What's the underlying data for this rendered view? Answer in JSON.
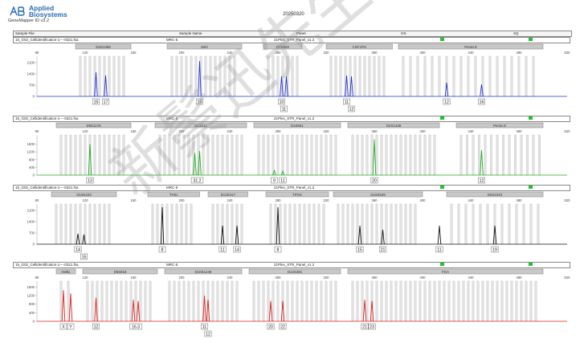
{
  "brand": {
    "line1": "Applied",
    "line2": "Biosystems",
    "version": "GeneMapper ID v3.2"
  },
  "date": "20250320",
  "header": {
    "sample_file": "Sample File",
    "sample_name": "Sample Name",
    "panel": "Panel",
    "os": "OS",
    "sq": "SQ"
  },
  "watermark": "新鬃迅先生物",
  "colors": {
    "blue": "#2233cc",
    "green": "#22aa22",
    "black": "#111111",
    "red": "#dd2222",
    "quality": "#22c22e"
  },
  "panels": [
    {
      "file": "15_G02_Cellidentification-1----0321.fsa",
      "name": "MRC-5",
      "panel": "21Plex_STR_Panel_v1.2",
      "color": "#2233cc",
      "chart_data": {
        "type": "line",
        "xlim": [
          80,
          520
        ],
        "ylim": [
          0,
          2400
        ],
        "x_ticks": [
          80,
          120,
          160,
          200,
          240,
          280,
          320,
          360,
          400,
          440,
          480,
          520
        ],
        "y_ticks": [
          0,
          700,
          1400,
          2100
        ],
        "markers": [
          {
            "name": "D3S1358",
            "start": 112,
            "end": 158
          },
          {
            "name": "vWA",
            "start": 188,
            "end": 250
          },
          {
            "name": "D7S820",
            "start": 268,
            "end": 300
          },
          {
            "name": "CSF1PO",
            "start": 320,
            "end": 375
          },
          {
            "name": "Penta E",
            "start": 380,
            "end": 500
          }
        ],
        "bins": [
          116,
          120,
          124,
          128,
          132,
          136,
          140,
          144,
          148,
          152,
          192,
          196,
          200,
          204,
          208,
          212,
          216,
          220,
          224,
          228,
          232,
          236,
          240,
          244,
          272,
          276,
          280,
          284,
          288,
          292,
          296,
          324,
          328,
          332,
          336,
          340,
          344,
          348,
          352,
          356,
          360,
          364,
          368,
          384,
          390,
          396,
          402,
          408,
          414,
          420,
          426,
          432,
          438,
          444,
          450,
          456,
          462,
          468,
          474,
          480,
          486,
          492
        ],
        "peaks": [
          {
            "x": 129,
            "y": 1500
          },
          {
            "x": 137,
            "y": 1300
          },
          {
            "x": 215,
            "y": 2200
          },
          {
            "x": 283,
            "y": 1250
          },
          {
            "x": 287,
            "y": 1250
          },
          {
            "x": 337,
            "y": 1300
          },
          {
            "x": 341,
            "y": 1250
          },
          {
            "x": 420,
            "y": 850
          },
          {
            "x": 449,
            "y": 750
          }
        ],
        "allele_labels": [
          {
            "x": 129,
            "row": 1,
            "text": "15"
          },
          {
            "x": 137,
            "row": 1,
            "text": "17"
          },
          {
            "x": 215,
            "row": 1,
            "text": "15"
          },
          {
            "x": 283,
            "row": 1,
            "text": "10"
          },
          {
            "x": 285,
            "row": 2,
            "text": "11"
          },
          {
            "x": 337,
            "row": 1,
            "text": "11"
          },
          {
            "x": 341,
            "row": 2,
            "text": "12"
          },
          {
            "x": 420,
            "row": 1,
            "text": "12"
          },
          {
            "x": 449,
            "row": 1,
            "text": "16"
          }
        ]
      }
    },
    {
      "file": "15_G02_Cellidentification-1----0321.fsa",
      "name": "MRC-5",
      "panel": "21Plex_STR_Panel_v1.2",
      "color": "#22aa22",
      "chart_data": {
        "type": "line",
        "xlim": [
          80,
          520
        ],
        "ylim": [
          0,
          2000
        ],
        "x_ticks": [
          80,
          120,
          160,
          200,
          240,
          280,
          320,
          360,
          400,
          440,
          480,
          520
        ],
        "y_ticks": [
          0,
          400,
          800,
          1200,
          1600
        ],
        "markers": [
          {
            "name": "D8S1179",
            "start": 96,
            "end": 158
          },
          {
            "name": "D21S11",
            "start": 178,
            "end": 254
          },
          {
            "name": "D18S51",
            "start": 260,
            "end": 332
          },
          {
            "name": "D2S1338",
            "start": 338,
            "end": 414
          },
          {
            "name": "Penta D",
            "start": 428,
            "end": 500
          }
        ],
        "bins": [
          100,
          104,
          108,
          112,
          116,
          120,
          124,
          128,
          132,
          136,
          140,
          144,
          148,
          152,
          182,
          186,
          190,
          194,
          198,
          202,
          206,
          210,
          214,
          218,
          222,
          226,
          230,
          234,
          238,
          242,
          246,
          250,
          264,
          268,
          272,
          276,
          280,
          284,
          288,
          292,
          296,
          300,
          304,
          308,
          312,
          316,
          320,
          324,
          328,
          342,
          346,
          350,
          354,
          358,
          362,
          366,
          370,
          374,
          378,
          382,
          386,
          390,
          394,
          398,
          402,
          406,
          410,
          432,
          437,
          442,
          447,
          452,
          457,
          462,
          467,
          472,
          477,
          482,
          487,
          492,
          497
        ],
        "peaks": [
          {
            "x": 124,
            "y": 1600
          },
          {
            "x": 211,
            "y": 1150
          },
          {
            "x": 215,
            "y": 1250
          },
          {
            "x": 277,
            "y": 240
          },
          {
            "x": 284,
            "y": 200
          },
          {
            "x": 360,
            "y": 1850
          },
          {
            "x": 449,
            "y": 1300
          }
        ],
        "allele_labels": [
          {
            "x": 124,
            "row": 1,
            "text": "13"
          },
          {
            "x": 213,
            "row": 1,
            "text": "31.2"
          },
          {
            "x": 277,
            "row": 1,
            "text": "9"
          },
          {
            "x": 284,
            "row": 1,
            "text": "11"
          },
          {
            "x": 360,
            "row": 1,
            "text": "20"
          },
          {
            "x": 449,
            "row": 1,
            "text": "12"
          }
        ]
      }
    },
    {
      "file": "15_G02_Cellidentification-1----0321.fsa",
      "name": "MRC-5",
      "panel": "21Plex_STR_Panel_v1.2",
      "color": "#111111",
      "chart_data": {
        "type": "line",
        "xlim": [
          80,
          520
        ],
        "ylim": [
          0,
          2400
        ],
        "x_ticks": [
          80,
          120,
          160,
          200,
          240,
          280,
          320,
          360,
          400,
          440,
          480,
          520
        ],
        "y_ticks": [
          0,
          700,
          1400,
          2100
        ],
        "markers": [
          {
            "name": "D19S433",
            "start": 92,
            "end": 146
          },
          {
            "name": "TH01",
            "start": 172,
            "end": 215
          },
          {
            "name": "D13S317",
            "start": 222,
            "end": 255
          },
          {
            "name": "TPOX",
            "start": 270,
            "end": 322
          },
          {
            "name": "D16S539",
            "start": 326,
            "end": 400
          },
          {
            "name": "D6S1043",
            "start": 420,
            "end": 500
          }
        ],
        "bins": [
          96,
          100,
          104,
          108,
          112,
          116,
          120,
          124,
          128,
          132,
          136,
          140,
          176,
          180,
          184,
          188,
          192,
          196,
          200,
          204,
          208,
          226,
          230,
          234,
          238,
          242,
          246,
          250,
          274,
          278,
          282,
          286,
          290,
          294,
          298,
          302,
          306,
          310,
          314,
          318,
          330,
          334,
          338,
          342,
          346,
          350,
          354,
          358,
          362,
          366,
          370,
          374,
          378,
          382,
          386,
          390,
          394,
          424,
          430,
          436,
          442,
          448,
          454,
          460,
          466,
          472,
          478,
          484,
          490,
          496
        ],
        "peaks": [
          {
            "x": 114,
            "y": 650
          },
          {
            "x": 119,
            "y": 600
          },
          {
            "x": 184,
            "y": 2300
          },
          {
            "x": 234,
            "y": 1150
          },
          {
            "x": 246,
            "y": 1150
          },
          {
            "x": 280,
            "y": 2300
          },
          {
            "x": 348,
            "y": 1150
          },
          {
            "x": 367,
            "y": 900
          },
          {
            "x": 414,
            "y": 1150
          },
          {
            "x": 460,
            "y": 1150
          }
        ],
        "allele_labels": [
          {
            "x": 114,
            "row": 1,
            "text": "14"
          },
          {
            "x": 119,
            "row": 2,
            "text": "15"
          },
          {
            "x": 184,
            "row": 1,
            "text": "8"
          },
          {
            "x": 234,
            "row": 1,
            "text": "11"
          },
          {
            "x": 246,
            "row": 1,
            "text": "14"
          },
          {
            "x": 280,
            "row": 1,
            "text": "8"
          },
          {
            "x": 348,
            "row": 1,
            "text": "15"
          },
          {
            "x": 367,
            "row": 1,
            "text": "21"
          },
          {
            "x": 414,
            "row": 1,
            "text": "11"
          },
          {
            "x": 460,
            "row": 1,
            "text": "19"
          }
        ]
      }
    },
    {
      "file": "15_G02_Cellidentification-1----0321.fsa",
      "name": "MRC-5",
      "panel": "21Plex_STR_Panel_v1.2",
      "color": "#dd2222",
      "chart_data": {
        "type": "line",
        "xlim": [
          80,
          520
        ],
        "ylim": [
          0,
          1800
        ],
        "x_ticks": [
          80,
          120,
          160,
          200,
          240,
          280,
          320,
          360,
          400,
          440,
          480,
          520
        ],
        "y_ticks": [
          0,
          400,
          800,
          1200,
          1600
        ],
        "markers": [
          {
            "name": "AMEL",
            "start": 96,
            "end": 112
          },
          {
            "name": "D5S818",
            "start": 118,
            "end": 180
          },
          {
            "name": "D10S1248",
            "start": 186,
            "end": 250
          },
          {
            "name": "D12S391",
            "start": 256,
            "end": 332
          },
          {
            "name": "FGA",
            "start": 338,
            "end": 500
          }
        ],
        "bins": [
          100,
          106,
          122,
          126,
          130,
          134,
          138,
          142,
          146,
          150,
          154,
          158,
          162,
          166,
          170,
          174,
          190,
          194,
          198,
          202,
          206,
          210,
          214,
          218,
          222,
          226,
          230,
          234,
          238,
          242,
          246,
          260,
          264,
          268,
          272,
          276,
          280,
          284,
          288,
          292,
          296,
          300,
          304,
          308,
          312,
          316,
          320,
          324,
          328,
          342,
          346,
          350,
          354,
          358,
          362,
          366,
          370,
          374,
          378,
          382,
          386,
          390,
          394,
          398,
          402,
          406,
          410,
          414,
          418,
          422,
          426,
          430,
          434,
          438,
          442,
          446,
          450,
          454,
          458,
          462,
          466,
          470,
          474,
          478,
          482,
          486,
          490,
          494
        ],
        "peaks": [
          {
            "x": 102,
            "y": 1450
          },
          {
            "x": 108,
            "y": 1300
          },
          {
            "x": 129,
            "y": 1100
          },
          {
            "x": 160,
            "y": 1000
          },
          {
            "x": 164,
            "y": 950
          },
          {
            "x": 219,
            "y": 1200
          },
          {
            "x": 222,
            "y": 1000
          },
          {
            "x": 274,
            "y": 950
          },
          {
            "x": 284,
            "y": 950
          },
          {
            "x": 352,
            "y": 1000
          },
          {
            "x": 358,
            "y": 950
          }
        ],
        "allele_labels": [
          {
            "x": 102,
            "row": 1,
            "text": "X"
          },
          {
            "x": 108,
            "row": 1,
            "text": "Y"
          },
          {
            "x": 129,
            "row": 1,
            "text": "12"
          },
          {
            "x": 162,
            "row": 1,
            "text": "16.3"
          },
          {
            "x": 219,
            "row": 1,
            "text": "11"
          },
          {
            "x": 222,
            "row": 2,
            "text": "12"
          },
          {
            "x": 274,
            "row": 1,
            "text": "20"
          },
          {
            "x": 284,
            "row": 1,
            "text": "22"
          },
          {
            "x": 352,
            "row": 1,
            "text": "21"
          },
          {
            "x": 358,
            "row": 1,
            "text": "23"
          }
        ]
      }
    }
  ]
}
